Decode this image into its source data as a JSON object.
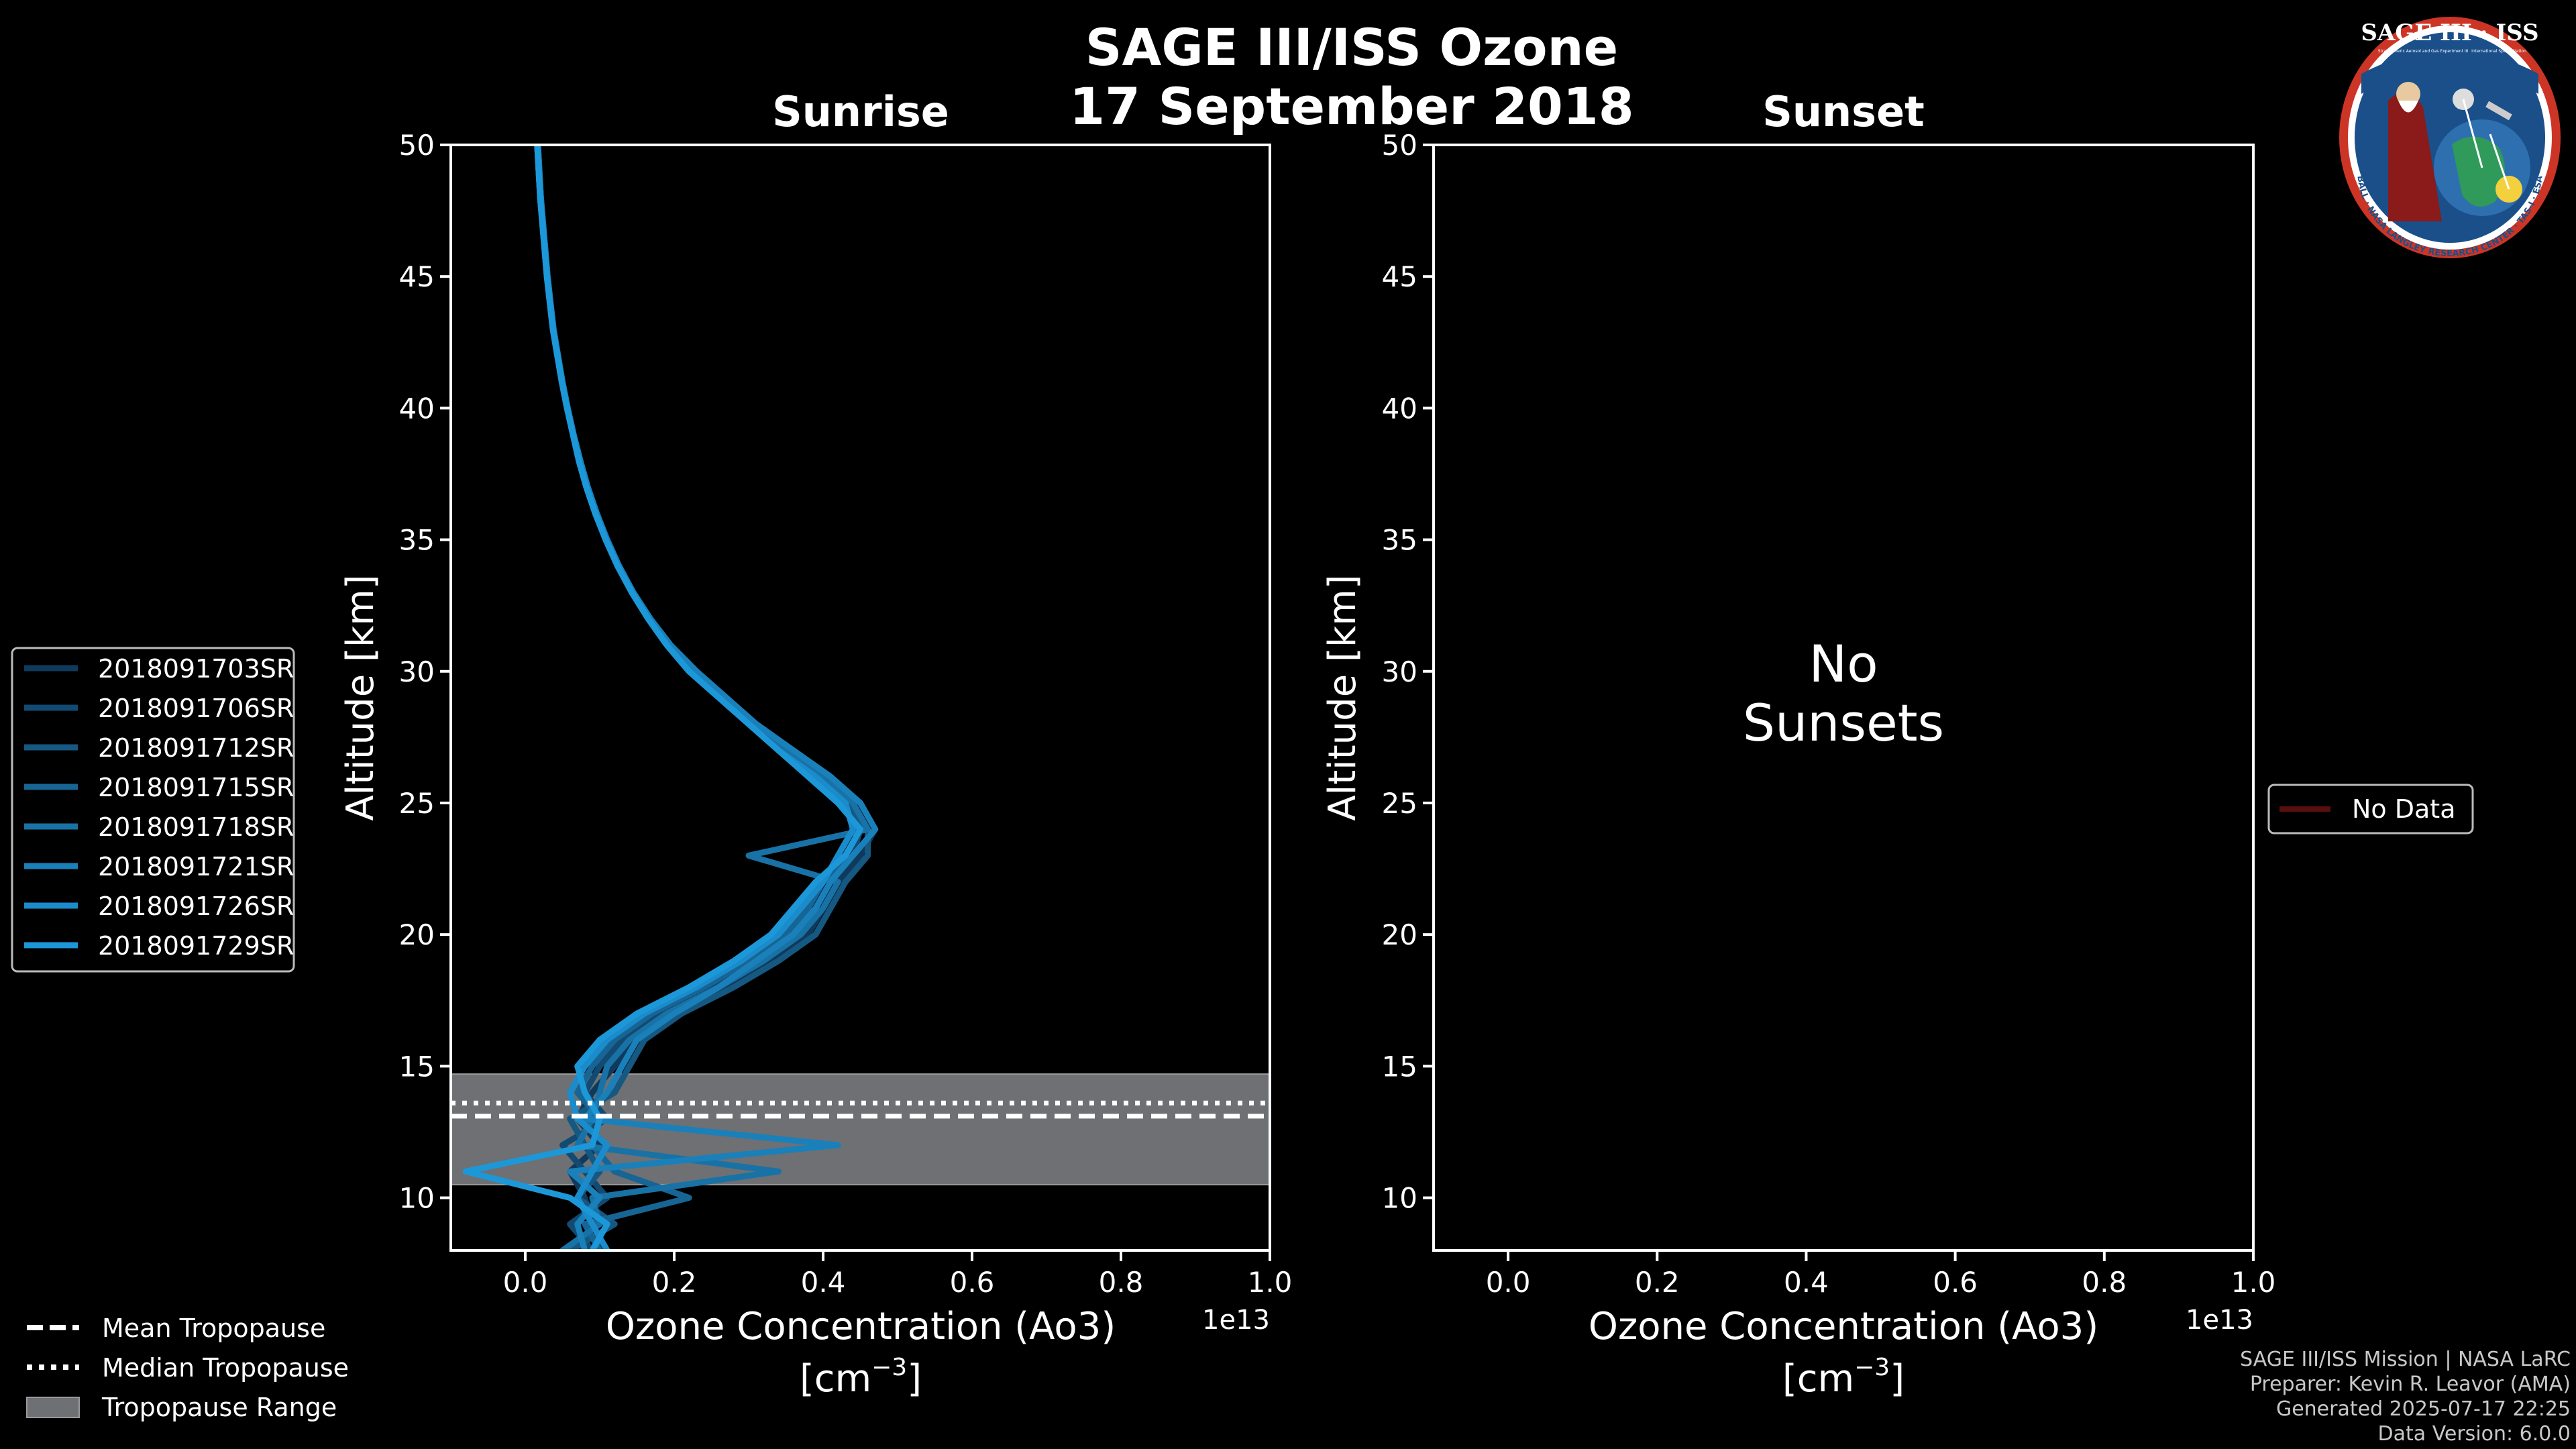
{
  "title": {
    "line1": "SAGE III/ISS Ozone",
    "line2": "17 September 2018"
  },
  "colors": {
    "background": "#000000",
    "axes": "#ffffff",
    "tropopause_fill": "#6e7073",
    "series": [
      "#0f3a5c",
      "#124a72",
      "#155882",
      "#176595",
      "#1872a6",
      "#1a80ba",
      "#1b8ccb",
      "#1c98d9"
    ],
    "no_data": "#5a0f0f"
  },
  "chart_data": [
    {
      "type": "line",
      "panel": "sunrise",
      "title": "Sunrise",
      "xlabel": "Ozone Concentration (Ao3)",
      "xunit": "[cm^-3]",
      "x_offset_label": "1e13",
      "ylabel": "Altitude [km]",
      "xlim": [
        -0.1,
        1.0
      ],
      "ylim": [
        8,
        50
      ],
      "xticks": [
        0.0,
        0.2,
        0.4,
        0.6,
        0.8,
        1.0
      ],
      "xtick_labels": [
        "0.0",
        "0.2",
        "0.4",
        "0.6",
        "0.8",
        "1.0"
      ],
      "yticks": [
        10,
        15,
        20,
        25,
        30,
        35,
        40,
        45,
        50
      ],
      "ytick_labels": [
        "10",
        "15",
        "20",
        "25",
        "30",
        "35",
        "40",
        "45",
        "50"
      ],
      "tropopause": {
        "mean": 13.1,
        "median": 13.6,
        "min": 10.5,
        "max": 14.7
      },
      "altitudes": [
        8,
        9,
        10,
        11,
        12,
        13,
        14,
        15,
        16,
        17,
        18,
        19,
        20,
        21,
        22,
        23,
        24,
        25,
        26,
        27,
        28,
        29,
        30,
        31,
        32,
        33,
        34,
        35,
        36,
        37,
        38,
        39,
        40,
        41,
        42,
        43,
        44,
        45,
        46,
        47,
        48,
        49,
        50
      ],
      "series": [
        {
          "name": "2018091703SR",
          "values": [
            0.07,
            0.09,
            0.08,
            0.06,
            0.1,
            0.07,
            0.09,
            0.12,
            0.15,
            0.2,
            0.27,
            0.33,
            0.38,
            0.4,
            0.42,
            0.45,
            0.47,
            0.45,
            0.41,
            0.36,
            0.31,
            0.27,
            0.23,
            0.195,
            0.168,
            0.145,
            0.126,
            0.11,
            0.096,
            0.084,
            0.074,
            0.065,
            0.057,
            0.05,
            0.044,
            0.038,
            0.034,
            0.03,
            0.027,
            0.024,
            0.021,
            0.019,
            0.017
          ]
        },
        {
          "name": "2018091706SR",
          "values": [
            0.09,
            0.06,
            0.11,
            0.08,
            0.05,
            0.11,
            0.08,
            0.1,
            0.13,
            0.18,
            0.25,
            0.31,
            0.36,
            0.39,
            0.41,
            0.44,
            0.45,
            0.44,
            0.4,
            0.35,
            0.3,
            0.26,
            0.22,
            0.19,
            0.165,
            0.143,
            0.124,
            0.108,
            0.094,
            0.082,
            0.072,
            0.064,
            0.056,
            0.049,
            0.043,
            0.037,
            0.033,
            0.029,
            0.026,
            0.023,
            0.02,
            0.018,
            0.016
          ]
        },
        {
          "name": "2018091712SR",
          "values": [
            0.06,
            0.12,
            0.07,
            0.1,
            0.08,
            0.06,
            0.12,
            0.14,
            0.16,
            0.21,
            0.28,
            0.34,
            0.39,
            0.41,
            0.43,
            0.46,
            0.46,
            0.43,
            0.39,
            0.34,
            0.3,
            0.26,
            0.22,
            0.19,
            0.165,
            0.143,
            0.124,
            0.108,
            0.094,
            0.082,
            0.072,
            0.064,
            0.056,
            0.049,
            0.043,
            0.037,
            0.033,
            0.029,
            0.026,
            0.023,
            0.02,
            0.018,
            0.016
          ]
        },
        {
          "name": "2018091715SR",
          "values": [
            0.1,
            0.08,
            0.22,
            0.12,
            0.09,
            0.1,
            0.07,
            0.09,
            0.12,
            0.17,
            0.24,
            0.3,
            0.35,
            0.38,
            0.4,
            0.43,
            0.45,
            0.42,
            0.38,
            0.34,
            0.3,
            0.26,
            0.22,
            0.19,
            0.165,
            0.143,
            0.124,
            0.108,
            0.094,
            0.082,
            0.072,
            0.064,
            0.056,
            0.049,
            0.043,
            0.037,
            0.033,
            0.029,
            0.026,
            0.023,
            0.02,
            0.018,
            0.016
          ]
        },
        {
          "name": "2018091718SR",
          "values": [
            0.05,
            0.1,
            0.09,
            0.34,
            0.07,
            0.09,
            0.1,
            0.11,
            0.14,
            0.19,
            0.26,
            0.32,
            0.37,
            0.4,
            0.42,
            0.3,
            0.46,
            0.44,
            0.4,
            0.35,
            0.31,
            0.27,
            0.23,
            0.195,
            0.168,
            0.145,
            0.126,
            0.11,
            0.096,
            0.084,
            0.074,
            0.065,
            0.057,
            0.05,
            0.044,
            0.038,
            0.034,
            0.03,
            0.027,
            0.024,
            0.021,
            0.019,
            0.017
          ]
        },
        {
          "name": "2018091721SR",
          "values": [
            0.08,
            0.07,
            0.1,
            0.06,
            0.42,
            0.08,
            0.11,
            0.13,
            0.15,
            0.2,
            0.26,
            0.31,
            0.36,
            0.39,
            0.41,
            0.44,
            0.47,
            0.45,
            0.41,
            0.36,
            0.31,
            0.27,
            0.23,
            0.195,
            0.168,
            0.145,
            0.126,
            0.11,
            0.096,
            0.084,
            0.074,
            0.065,
            0.057,
            0.05,
            0.044,
            0.038,
            0.034,
            0.03,
            0.027,
            0.024,
            0.021,
            0.019,
            0.017
          ]
        },
        {
          "name": "2018091726SR",
          "values": [
            0.11,
            0.09,
            0.07,
            0.09,
            0.11,
            0.07,
            0.06,
            0.08,
            0.11,
            0.16,
            0.23,
            0.29,
            0.34,
            0.37,
            0.4,
            0.42,
            0.44,
            0.43,
            0.39,
            0.34,
            0.3,
            0.26,
            0.22,
            0.19,
            0.165,
            0.143,
            0.124,
            0.108,
            0.094,
            0.082,
            0.072,
            0.064,
            0.056,
            0.049,
            0.043,
            0.037,
            0.033,
            0.029,
            0.026,
            0.023,
            0.02,
            0.018,
            0.016
          ]
        },
        {
          "name": "2018091729SR",
          "values": [
            0.09,
            0.11,
            0.06,
            -0.08,
            0.09,
            0.1,
            0.08,
            0.07,
            0.1,
            0.15,
            0.22,
            0.28,
            0.33,
            0.36,
            0.39,
            0.43,
            0.45,
            0.42,
            0.38,
            0.34,
            0.3,
            0.26,
            0.22,
            0.19,
            0.165,
            0.143,
            0.124,
            0.108,
            0.094,
            0.082,
            0.072,
            0.064,
            0.056,
            0.049,
            0.043,
            0.037,
            0.033,
            0.029,
            0.026,
            0.023,
            0.02,
            0.018,
            0.016
          ]
        }
      ],
      "legend": {
        "placement": "left",
        "entries": [
          "2018091703SR",
          "2018091706SR",
          "2018091712SR",
          "2018091715SR",
          "2018091718SR",
          "2018091721SR",
          "2018091726SR",
          "2018091729SR"
        ]
      },
      "tropopause_legend": {
        "placement": "bottom-left",
        "entries": [
          "Mean Tropopause",
          "Median Tropopause",
          "Tropopause Range"
        ]
      }
    },
    {
      "type": "line",
      "panel": "sunset",
      "title": "Sunset",
      "xlabel": "Ozone Concentration (Ao3)",
      "xunit": "[cm^-3]",
      "x_offset_label": "1e13",
      "ylabel": "Altitude [km]",
      "xlim": [
        -0.1,
        1.0
      ],
      "ylim": [
        8,
        50
      ],
      "xticks": [
        0.0,
        0.2,
        0.4,
        0.6,
        0.8,
        1.0
      ],
      "xtick_labels": [
        "0.0",
        "0.2",
        "0.4",
        "0.6",
        "0.8",
        "1.0"
      ],
      "yticks": [
        10,
        15,
        20,
        25,
        30,
        35,
        40,
        45,
        50
      ],
      "ytick_labels": [
        "10",
        "15",
        "20",
        "25",
        "30",
        "35",
        "40",
        "45",
        "50"
      ],
      "series": [],
      "annotation": [
        "No",
        "Sunsets"
      ],
      "legend": {
        "placement": "right",
        "entries": [
          "No Data"
        ]
      }
    }
  ],
  "logo": {
    "top_text": "SAGE III · ISS",
    "small_left": "Stratospheric Aerosol and Gas Experiment III",
    "small_right": "International Space Station",
    "ring_text": "BALL · NASA LANGLEY RESEARCH CENTER · TAS-I · ESA"
  },
  "footer": {
    "line1": "SAGE III/ISS Mission | NASA LaRC",
    "line2": "Preparer: Kevin R. Leavor (AMA)",
    "line3": "Generated 2025-07-17 22:25",
    "line4": "Data Version: 6.0.0"
  }
}
